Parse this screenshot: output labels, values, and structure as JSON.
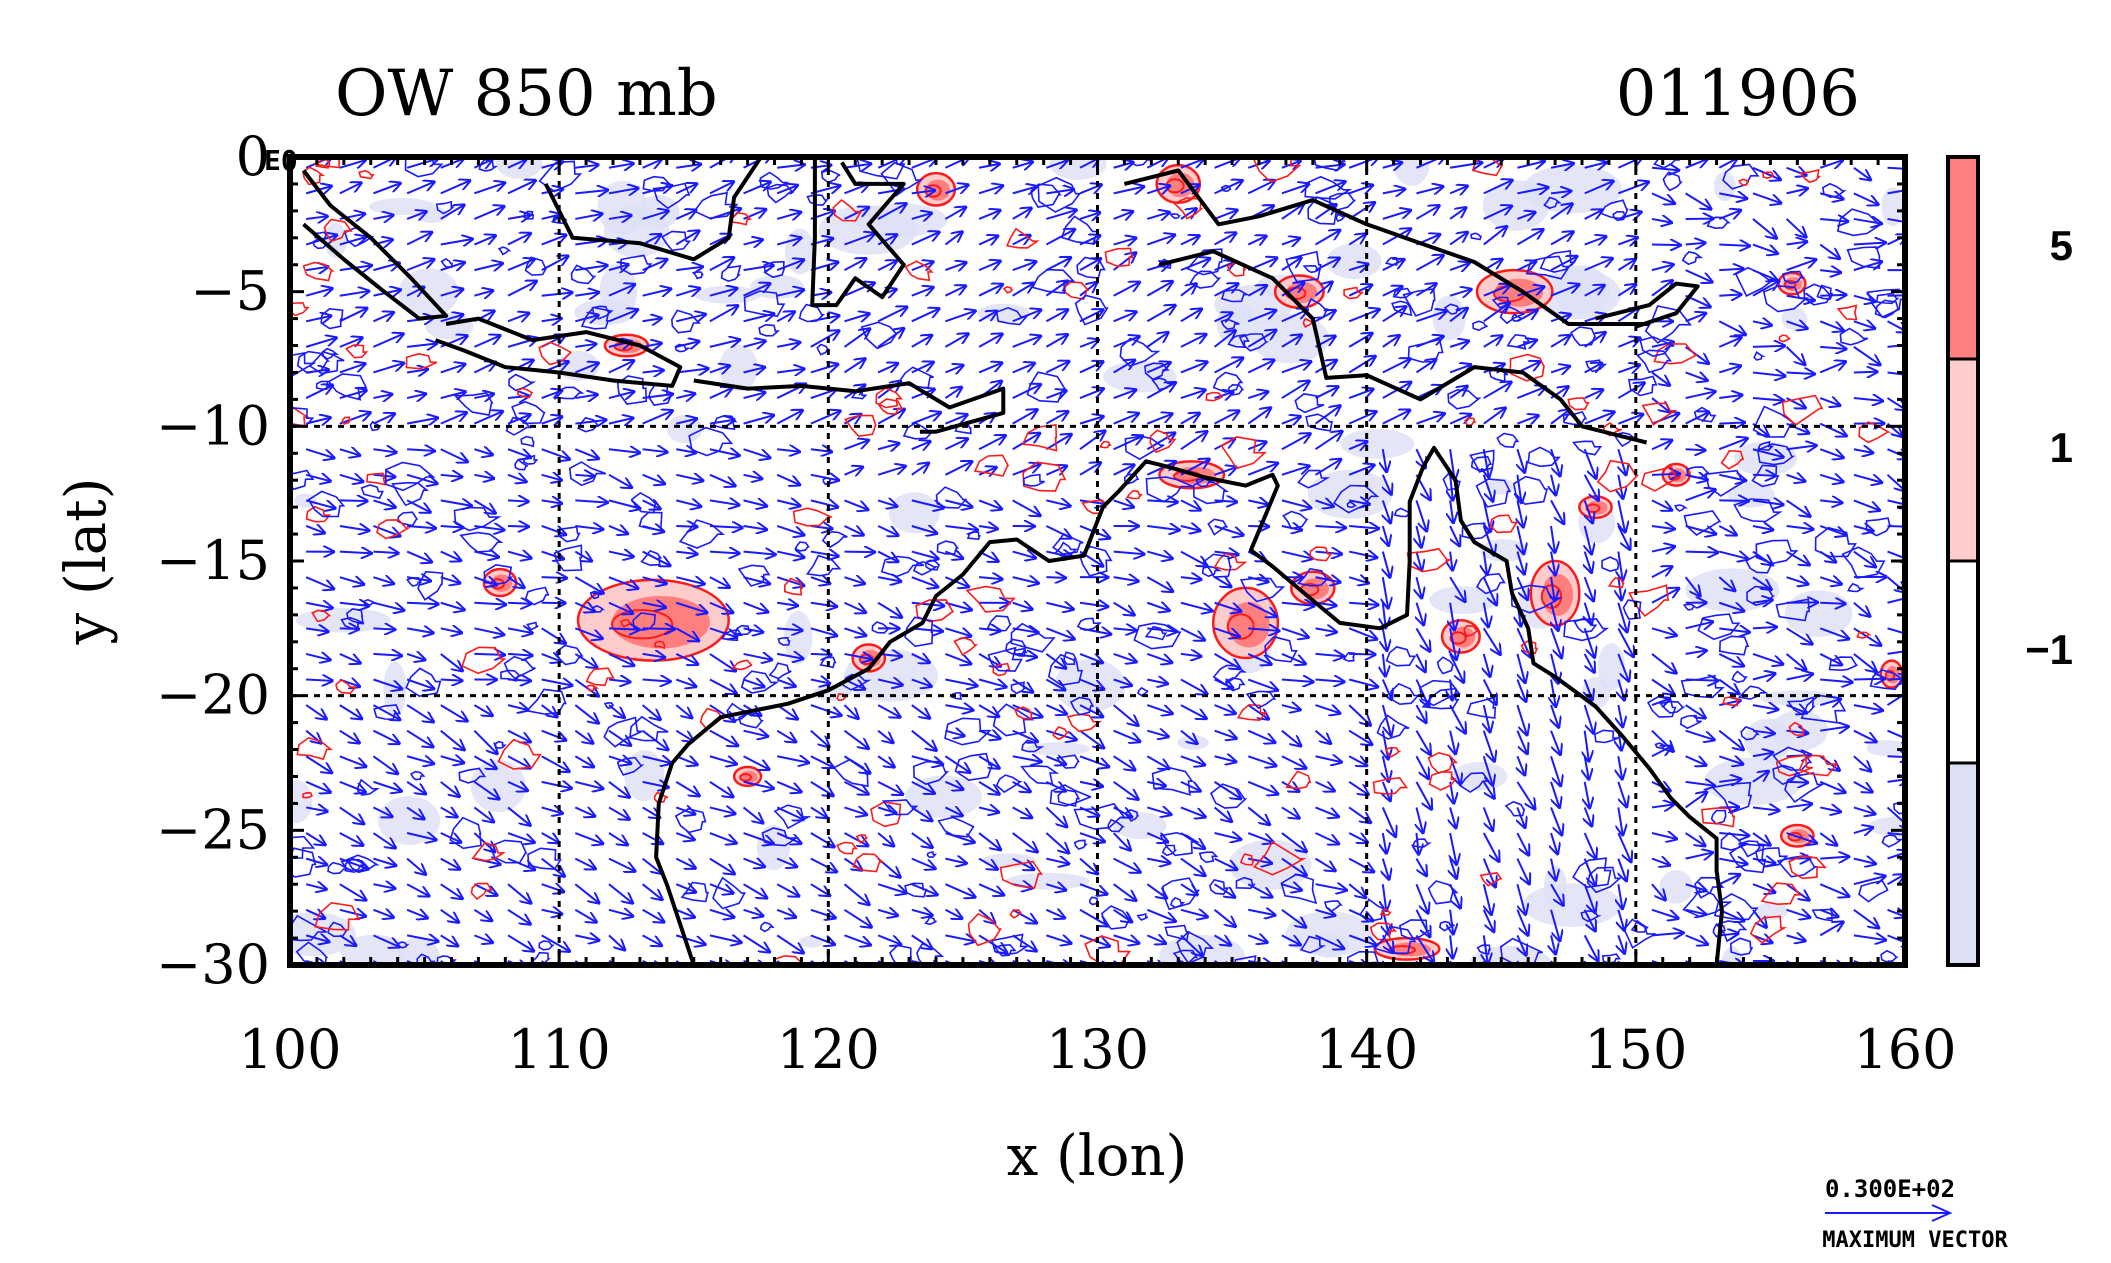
{
  "chart_data": {
    "type": "contour_vector_map",
    "title_left": "OW 850 mb",
    "title_right": "011906",
    "xlabel": "x (lon)",
    "ylabel": "y (lat)",
    "xlim": [
      100,
      160
    ],
    "ylim": [
      -30,
      0
    ],
    "xticks": [
      100,
      110,
      120,
      130,
      140,
      150,
      160
    ],
    "yticks": [
      0,
      -5,
      -10,
      -15,
      -20,
      -25,
      -30
    ],
    "grid_x": [
      110,
      120,
      130,
      140,
      150
    ],
    "grid_y": [
      -10,
      -20
    ],
    "corner_label": "E0",
    "colorbar": {
      "levels": [
        -1,
        1,
        5
      ],
      "level_labels": [
        "-1",
        "1",
        "5"
      ],
      "bins": [
        {
          "range": "< -1",
          "color": "#dde0f5"
        },
        {
          "range": "-1 to 1",
          "color": "#ffffff"
        },
        {
          "range": "1 to 5",
          "color": "#ffcccc"
        },
        {
          "range": "> 5",
          "color": "#ff7f7f"
        }
      ]
    },
    "vector_legend": {
      "value_text": "0.300E+02",
      "caption": "MAXIMUM VECTOR"
    },
    "colors": {
      "vector": "#1a1aff",
      "negative_contour": "#1a1aff",
      "positive_contour": "#ff1a1a",
      "coast": "#000000"
    },
    "coastlines": [
      {
        "name": "sumatra",
        "points": [
          [
            100.5,
            -0.5
          ],
          [
            101.5,
            -1.8
          ],
          [
            103,
            -3
          ],
          [
            104.5,
            -4.5
          ],
          [
            105.8,
            -5.9
          ],
          [
            104.8,
            -6
          ],
          [
            103.5,
            -5
          ],
          [
            102,
            -3.8
          ],
          [
            100.5,
            -2.5
          ]
        ]
      },
      {
        "name": "java",
        "points": [
          [
            105.8,
            -6.2
          ],
          [
            107,
            -6
          ],
          [
            109,
            -6.8
          ],
          [
            111,
            -6.5
          ],
          [
            113,
            -7
          ],
          [
            114.5,
            -7.8
          ],
          [
            114.2,
            -8.5
          ],
          [
            112,
            -8.3
          ],
          [
            110,
            -8
          ],
          [
            108,
            -7.8
          ],
          [
            106.5,
            -7.2
          ],
          [
            105.4,
            -6.8
          ]
        ]
      },
      {
        "name": "borneo_south",
        "points": [
          [
            109.5,
            -1
          ],
          [
            110.5,
            -3
          ],
          [
            113,
            -3.2
          ],
          [
            115,
            -3.8
          ],
          [
            116.3,
            -3
          ],
          [
            116.5,
            -1.5
          ],
          [
            117.5,
            0
          ]
        ]
      },
      {
        "name": "nusa_tenggara",
        "points": [
          [
            115,
            -8.3
          ],
          [
            117,
            -8.6
          ],
          [
            119,
            -8.5
          ],
          [
            121,
            -8.7
          ],
          [
            123,
            -8.4
          ],
          [
            124.5,
            -9.3
          ],
          [
            126.5,
            -8.6
          ],
          [
            126.5,
            -9.5
          ],
          [
            124,
            -10.2
          ],
          [
            123.4,
            -10.2
          ]
        ]
      },
      {
        "name": "sulawesi",
        "points": [
          [
            119.5,
            0
          ],
          [
            119.5,
            -3
          ],
          [
            119.4,
            -5.5
          ],
          [
            120.3,
            -5.5
          ],
          [
            121,
            -4.5
          ],
          [
            122,
            -5.2
          ],
          [
            122.8,
            -4
          ],
          [
            121.5,
            -2.5
          ],
          [
            122.8,
            -1
          ],
          [
            121,
            -1
          ],
          [
            120.5,
            -0.2
          ]
        ]
      },
      {
        "name": "new_guinea_north",
        "points": [
          [
            131,
            -1
          ],
          [
            133,
            -0.5
          ],
          [
            134.5,
            -2.5
          ],
          [
            136,
            -2.2
          ],
          [
            138,
            -1.6
          ],
          [
            140,
            -2.5
          ],
          [
            142,
            -3.2
          ],
          [
            144,
            -3.9
          ],
          [
            145.8,
            -5
          ],
          [
            147.5,
            -6.2
          ],
          [
            149,
            -6.2
          ],
          [
            150.5,
            -6.2
          ]
        ]
      },
      {
        "name": "new_guinea_south",
        "points": [
          [
            132.3,
            -4
          ],
          [
            134.3,
            -3.5
          ],
          [
            136.5,
            -4.5
          ],
          [
            138,
            -6
          ],
          [
            138.5,
            -8.2
          ],
          [
            140,
            -8.1
          ],
          [
            142,
            -9
          ],
          [
            144,
            -7.8
          ],
          [
            145.8,
            -8
          ],
          [
            147.2,
            -9
          ],
          [
            148,
            -10
          ],
          [
            150,
            -10.5
          ],
          [
            150.4,
            -10.6
          ]
        ]
      },
      {
        "name": "new_britain",
        "points": [
          [
            148.5,
            -6
          ],
          [
            150.5,
            -5.5
          ],
          [
            151.5,
            -4.7
          ],
          [
            152.3,
            -4.8
          ],
          [
            151.5,
            -5.8
          ],
          [
            150,
            -6.3
          ]
        ]
      },
      {
        "name": "australia",
        "points": [
          [
            114.2,
            -22.5
          ],
          [
            113.7,
            -24
          ],
          [
            113.6,
            -26
          ],
          [
            114,
            -27
          ],
          [
            114.5,
            -28.5
          ],
          [
            115,
            -30
          ],
          [
            153,
            -30
          ],
          [
            153.2,
            -28
          ],
          [
            153,
            -26.5
          ],
          [
            153,
            -25.3
          ],
          [
            152,
            -24.5
          ],
          [
            151.3,
            -23.8
          ],
          [
            150.5,
            -22.7
          ],
          [
            149.5,
            -21.5
          ],
          [
            148.5,
            -20.4
          ],
          [
            147,
            -19.3
          ],
          [
            146.2,
            -18.8
          ],
          [
            146,
            -17.5
          ],
          [
            145.4,
            -16.2
          ],
          [
            145.2,
            -15
          ],
          [
            144,
            -14.3
          ],
          [
            143.5,
            -13.5
          ],
          [
            143.3,
            -12
          ],
          [
            142.5,
            -10.8
          ],
          [
            142.1,
            -11.5
          ],
          [
            141.6,
            -12.8
          ],
          [
            141.6,
            -15
          ],
          [
            141.5,
            -17
          ],
          [
            140.5,
            -17.5
          ],
          [
            139,
            -17.3
          ],
          [
            137.8,
            -16.3
          ],
          [
            136.5,
            -15.2
          ],
          [
            135.7,
            -14.6
          ],
          [
            136.7,
            -12.2
          ],
          [
            136.5,
            -11.8
          ],
          [
            135.5,
            -12.2
          ],
          [
            134,
            -11.9
          ],
          [
            132.6,
            -11.5
          ],
          [
            131.8,
            -11.3
          ],
          [
            130.8,
            -12.4
          ],
          [
            130.2,
            -13
          ],
          [
            129.5,
            -14.8
          ],
          [
            128.2,
            -15
          ],
          [
            127,
            -14.2
          ],
          [
            126,
            -14.3
          ],
          [
            125,
            -15.5
          ],
          [
            124,
            -16.3
          ],
          [
            123.5,
            -17.3
          ],
          [
            122.3,
            -18
          ],
          [
            121.5,
            -19
          ],
          [
            120,
            -19.8
          ],
          [
            118.5,
            -20.3
          ],
          [
            117,
            -20.6
          ],
          [
            116,
            -20.8
          ],
          [
            114.8,
            -21.8
          ],
          [
            114.2,
            -22.5
          ]
        ]
      },
      {
        "name": "tasmania_absent_marker",
        "points": []
      }
    ],
    "warm_centers": [
      {
        "lon": 113.5,
        "lat": -17.2,
        "rx": 2.8,
        "ry": 1.5
      },
      {
        "lon": 107.8,
        "lat": -15.8,
        "rx": 0.6,
        "ry": 0.5
      },
      {
        "lon": 135.5,
        "lat": -17.3,
        "rx": 1.2,
        "ry": 1.3
      },
      {
        "lon": 138,
        "lat": -16,
        "rx": 0.8,
        "ry": 0.6
      },
      {
        "lon": 147,
        "lat": -16.2,
        "rx": 0.9,
        "ry": 1.2
      },
      {
        "lon": 143.5,
        "lat": -17.8,
        "rx": 0.7,
        "ry": 0.6
      },
      {
        "lon": 133.5,
        "lat": -11.8,
        "rx": 1.2,
        "ry": 0.5
      },
      {
        "lon": 137.5,
        "lat": -5,
        "rx": 0.9,
        "ry": 0.6
      },
      {
        "lon": 145.5,
        "lat": -5,
        "rx": 1.4,
        "ry": 0.8
      },
      {
        "lon": 155.8,
        "lat": -4.7,
        "rx": 0.5,
        "ry": 0.4
      },
      {
        "lon": 124,
        "lat": -1.2,
        "rx": 0.7,
        "ry": 0.6
      },
      {
        "lon": 133,
        "lat": -1,
        "rx": 0.8,
        "ry": 0.7
      },
      {
        "lon": 117,
        "lat": -23,
        "rx": 0.5,
        "ry": 0.35
      },
      {
        "lon": 141.5,
        "lat": -29.4,
        "rx": 1.2,
        "ry": 0.4
      },
      {
        "lon": 156,
        "lat": -25.2,
        "rx": 0.6,
        "ry": 0.4
      },
      {
        "lon": 159.5,
        "lat": -19.2,
        "rx": 0.4,
        "ry": 0.5
      },
      {
        "lon": 148.5,
        "lat": -13,
        "rx": 0.6,
        "ry": 0.4
      },
      {
        "lon": 151.5,
        "lat": -11.8,
        "rx": 0.5,
        "ry": 0.4
      },
      {
        "lon": 112.5,
        "lat": -7,
        "rx": 0.8,
        "ry": 0.4
      },
      {
        "lon": 121.5,
        "lat": -18.6,
        "rx": 0.6,
        "ry": 0.5
      }
    ]
  }
}
